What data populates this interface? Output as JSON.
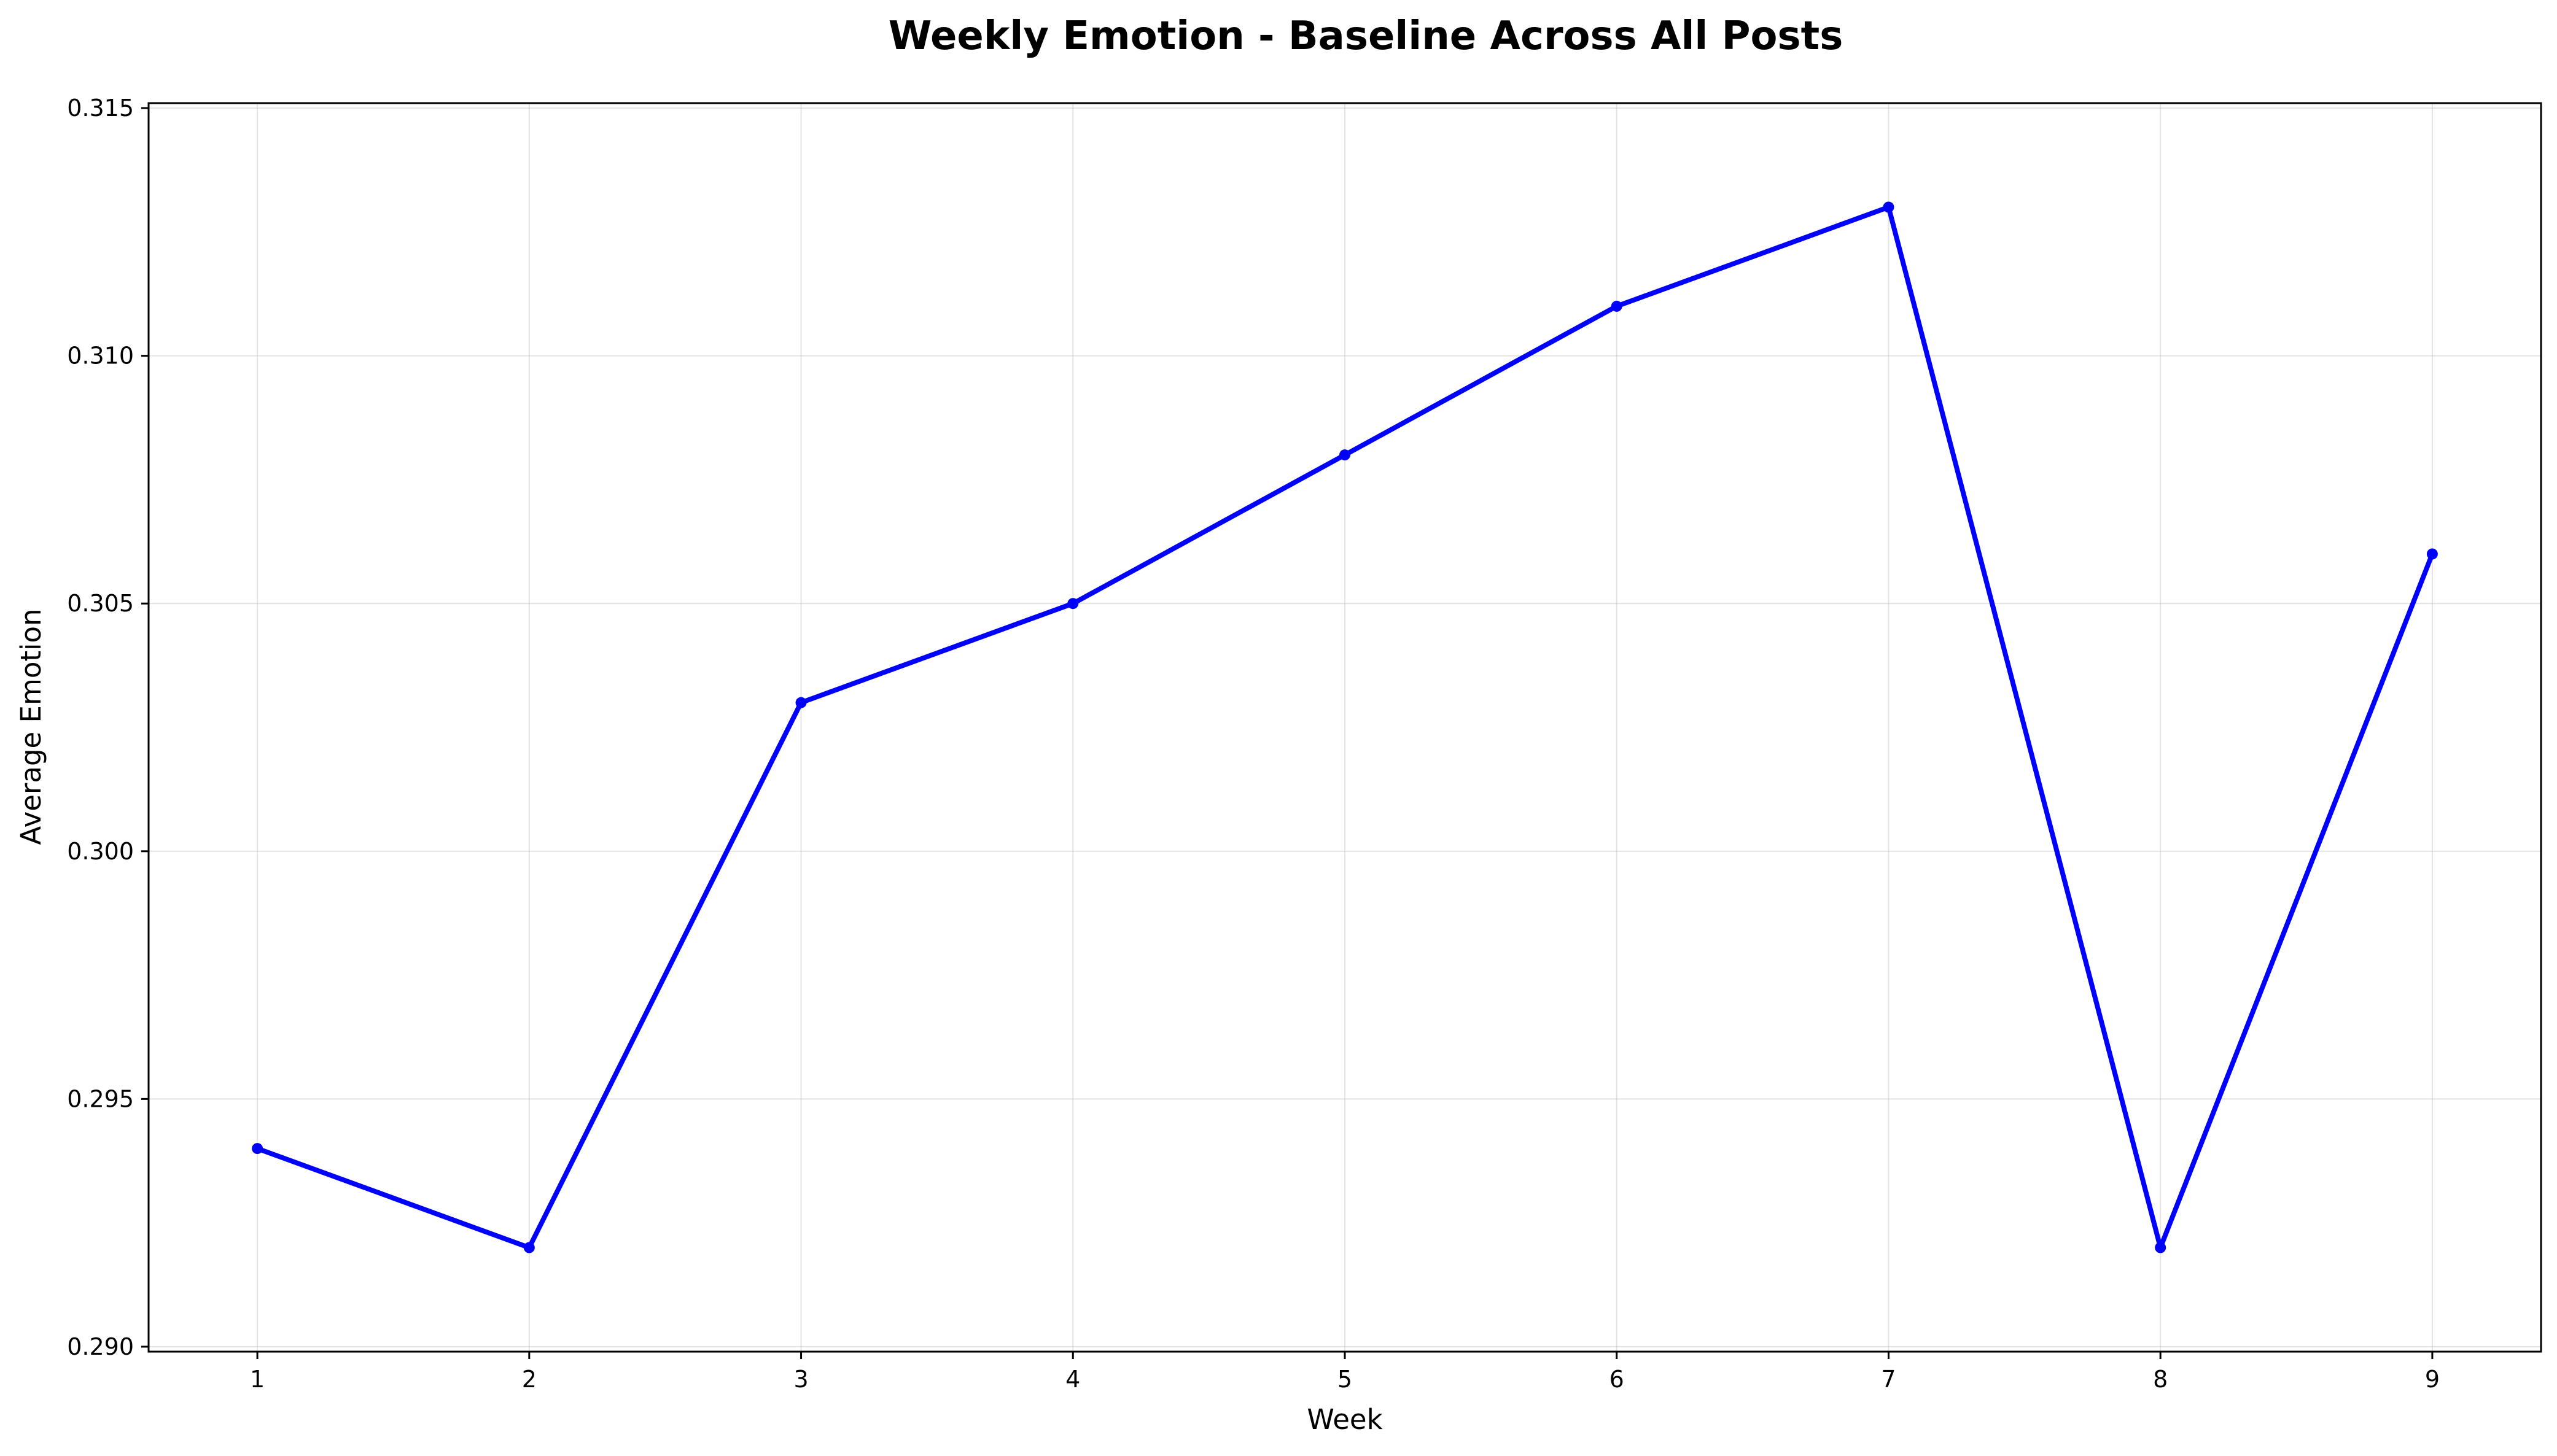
{
  "chart_data": {
    "type": "line",
    "title": "Weekly Emotion - Baseline Across All Posts",
    "xlabel": "Week",
    "ylabel": "Average Emotion",
    "x": [
      1,
      2,
      3,
      4,
      5,
      6,
      7,
      8,
      9
    ],
    "series": [
      {
        "values": [
          0.294,
          0.292,
          0.303,
          0.305,
          0.308,
          0.311,
          0.313,
          0.292,
          0.306
        ],
        "color": "#0000ff",
        "marker": "circle"
      }
    ],
    "xlim": [
      0.6,
      9.4
    ],
    "ylim": [
      0.2899,
      0.3151
    ],
    "xticks": [
      1,
      2,
      3,
      4,
      5,
      6,
      7,
      8,
      9
    ],
    "xtick_labels": [
      "1",
      "2",
      "3",
      "4",
      "5",
      "6",
      "7",
      "8",
      "9"
    ],
    "yticks": [
      0.29,
      0.295,
      0.3,
      0.305,
      0.31,
      0.315
    ],
    "ytick_labels": [
      "0.290",
      "0.295",
      "0.300",
      "0.305",
      "0.310",
      "0.315"
    ],
    "grid": true,
    "legend": "none"
  }
}
